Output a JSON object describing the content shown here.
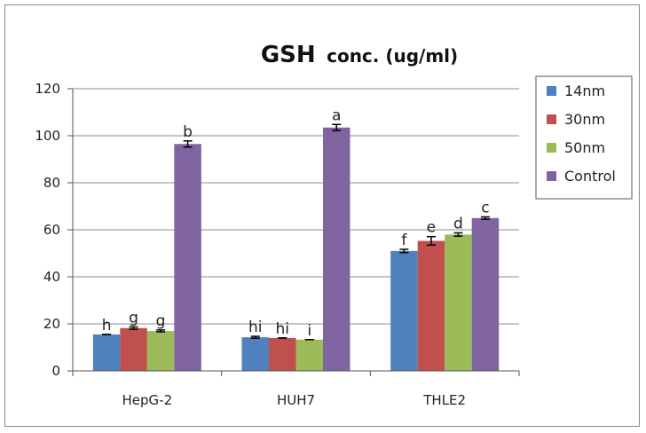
{
  "chart_data": {
    "type": "bar",
    "title": "GSH",
    "subtitle": "conc. (ug/ml)",
    "categories": [
      "HepG-2",
      "HUH7",
      "THLE2"
    ],
    "ylim": [
      0,
      120
    ],
    "yticks": [
      0,
      20,
      40,
      60,
      80,
      100,
      120
    ],
    "grid": true,
    "legend_position": "right-top",
    "series": [
      {
        "name": "14nm",
        "color": "#4f81bd",
        "values": [
          15.5,
          14.3,
          51
        ],
        "errors": [
          0,
          0.4,
          0.7
        ],
        "labels": [
          "h",
          "hi",
          "f"
        ]
      },
      {
        "name": "30nm",
        "color": "#c0504d",
        "values": [
          18.2,
          14,
          55.3
        ],
        "errors": [
          0.5,
          0,
          1.8
        ],
        "labels": [
          "g",
          "hi",
          "e"
        ]
      },
      {
        "name": "50nm",
        "color": "#9bbb59",
        "values": [
          17,
          13.3,
          58
        ],
        "errors": [
          0.4,
          0,
          0.7
        ],
        "labels": [
          "g",
          "i",
          "d"
        ]
      },
      {
        "name": "Control",
        "color": "#8064a2",
        "values": [
          96.5,
          103.5,
          65
        ],
        "errors": [
          1.3,
          1.3,
          0.5
        ],
        "labels": [
          "b",
          "a",
          "c"
        ]
      }
    ]
  }
}
